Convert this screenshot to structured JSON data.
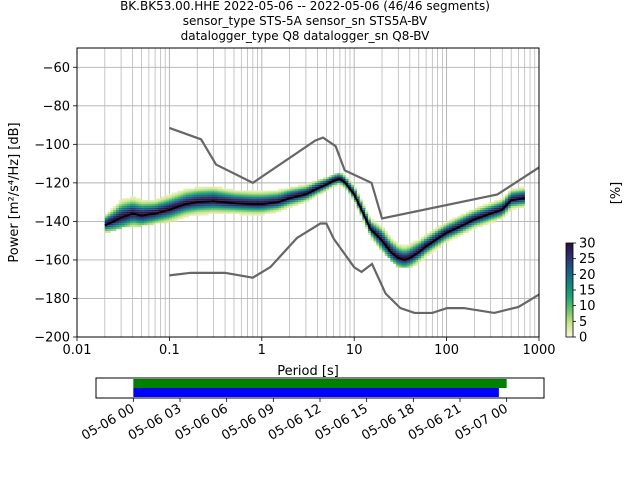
{
  "figure": {
    "title_lines": [
      "BK.BK53.00.HHE   2022-05-06 -- 2022-05-06  (46/46 segments)",
      "sensor_type STS-5A sensor_sn STS5A-BV",
      "datalogger_type Q8 datalogger_sn Q8-BV"
    ]
  },
  "chart_data": [
    {
      "type": "heatmap",
      "xlabel": "Period [s]",
      "ylabel_text": "Power [m²/s⁴/Hz] [dB]",
      "xscale": "log",
      "xlim": [
        0.01,
        1000
      ],
      "ylim": [
        -200,
        -50
      ],
      "grid": true,
      "x_ticks": [
        0.01,
        0.1,
        1,
        10,
        100,
        1000
      ],
      "x_tick_labels": [
        "0.01",
        "0.1",
        "1",
        "10",
        "100",
        "1000"
      ],
      "y_ticks": [
        -200,
        -180,
        -160,
        -140,
        -120,
        -100,
        -80,
        -60
      ],
      "y_tick_labels": [
        "−200",
        "−180",
        "−160",
        "−140",
        "−120",
        "−100",
        "−80",
        "−60"
      ],
      "colorbar": {
        "label": "[%]",
        "range": [
          0,
          30
        ],
        "ticks": [
          0,
          5,
          10,
          15,
          20,
          25,
          30
        ],
        "tick_labels": [
          "0",
          "5",
          "10",
          "15",
          "20",
          "25",
          "30"
        ],
        "colors": [
          "#f8f8d8",
          "#c9e58a",
          "#6cc26a",
          "#1fa37a",
          "#16807f",
          "#1d5a86",
          "#2d2f6e",
          "#2b0f3f"
        ]
      },
      "mean_curve": {
        "color": "#000000",
        "period": [
          0.02,
          0.025,
          0.03,
          0.04,
          0.05,
          0.07,
          0.1,
          0.15,
          0.2,
          0.3,
          0.5,
          0.8,
          1.0,
          1.5,
          2,
          3,
          4,
          5,
          6,
          7,
          8,
          10,
          12,
          15,
          20,
          25,
          30,
          35,
          40,
          50,
          60,
          80,
          100,
          150,
          200,
          300,
          400,
          500,
          700
        ],
        "power": [
          -142,
          -140,
          -138,
          -136,
          -137,
          -136,
          -134,
          -131,
          -130,
          -129.5,
          -130.5,
          -131,
          -131,
          -130,
          -128,
          -126,
          -123,
          -121,
          -119,
          -118,
          -120,
          -126,
          -134,
          -144,
          -150,
          -156,
          -159,
          -160,
          -159,
          -156,
          -153,
          -149,
          -146,
          -142,
          -139,
          -136,
          -134,
          -129,
          -128
        ]
      },
      "noise_models": {
        "color": "#666666",
        "high": {
          "period": [
            0.1,
            0.22,
            0.32,
            0.8,
            3.8,
            4.6,
            6.3,
            7.9,
            15.4,
            20,
            354.8,
            1000
          ],
          "power": [
            -91.5,
            -97.4,
            -110.5,
            -120,
            -98,
            -96.5,
            -101,
            -113.5,
            -120,
            -138.5,
            -126,
            -112
          ]
        },
        "low": {
          "period": [
            0.1,
            0.17,
            0.4,
            0.8,
            1.24,
            2.4,
            4.3,
            5.0,
            6.0,
            10,
            12,
            15.6,
            21.9,
            31.6,
            45,
            70,
            101,
            154,
            328,
            600,
            1000
          ],
          "power": [
            -168,
            -166.7,
            -166.7,
            -169.2,
            -163.7,
            -148.6,
            -141.1,
            -141.1,
            -149,
            -163.8,
            -166.2,
            -162.1,
            -177.5,
            -185,
            -187.5,
            -187.5,
            -185,
            -185,
            -187.5,
            -184.4,
            -178
          ]
        }
      },
      "density_band": {
        "period": [
          0.02,
          0.03,
          0.05,
          0.07,
          0.1,
          0.2,
          0.3,
          0.5,
          1.0,
          2,
          4,
          6,
          7,
          8,
          10,
          15,
          20,
          30,
          40,
          60,
          100,
          200,
          400,
          700
        ],
        "power_low": [
          -146,
          -143,
          -142,
          -141,
          -140,
          -138,
          -137,
          -137,
          -138,
          -135,
          -129,
          -124,
          -122,
          -124,
          -130,
          -148,
          -155,
          -164,
          -164,
          -160,
          -151,
          -144,
          -138,
          -133
        ],
        "power_high": [
          -136,
          -125,
          -126,
          -127,
          -125,
          -123,
          -122,
          -124,
          -125,
          -124,
          -120,
          -117,
          -116,
          -117,
          -121,
          -138,
          -140,
          -150,
          -150,
          -148,
          -140,
          -133,
          -127,
          -122
        ]
      }
    },
    {
      "type": "timeline",
      "x_tick_labels": [
        "05-06 00",
        "05-06 03",
        "05-06 06",
        "05-06 09",
        "05-06 12",
        "05-06 15",
        "05-06 18",
        "05-06 21",
        "05-07 00"
      ],
      "xlim_hours": [
        -2.4,
        26.4
      ],
      "bars": [
        {
          "color": "#008000",
          "start_hours": 0,
          "end_hours": 24.0
        },
        {
          "color": "#0000ff",
          "start_hours": 0,
          "end_hours": 23.5
        }
      ]
    }
  ]
}
